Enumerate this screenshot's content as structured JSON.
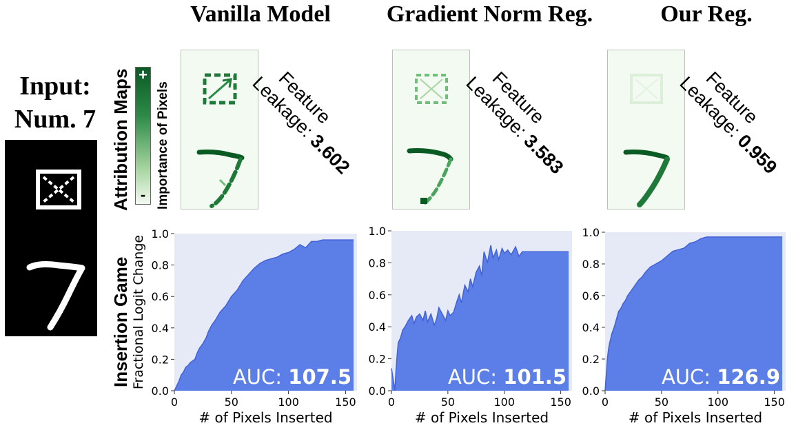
{
  "panel_titles": [
    "Vanilla Model",
    "Gradient Norm Reg.",
    "Our Reg."
  ],
  "input": {
    "title_line1": "Input:",
    "title_line2": "Num. 7"
  },
  "row_labels": {
    "attribution": "Attribution Maps",
    "insertion": "Insertion Game"
  },
  "colorbar": {
    "label": "Importance of Pixels",
    "plus": "+",
    "minus": "-"
  },
  "leakage": {
    "line1": "Feature",
    "line2": "Leakage:",
    "values": [
      "3.602",
      "3.583",
      "0.959"
    ]
  },
  "colors": {
    "fill": "#5b7fe6",
    "line": "#4361d6",
    "plot_bg": "#e5eaf6",
    "attr_dark": "#0a5a24"
  },
  "chart_data": [
    {
      "type": "area",
      "title": "",
      "xlabel": "# of Pixels Inserted",
      "ylabel": "Fractional Logit Change",
      "xlim": [
        0,
        160
      ],
      "ylim": [
        0,
        1.0
      ],
      "xticks": [
        0,
        50,
        100,
        150
      ],
      "yticks": [
        0.0,
        0.2,
        0.4,
        0.6,
        0.8,
        1.0
      ],
      "grid": false,
      "annotation": {
        "prefix": "AUC:",
        "value": "107.5"
      },
      "x": [
        0,
        2,
        4,
        6,
        8,
        10,
        12,
        14,
        16,
        18,
        20,
        22,
        25,
        28,
        30,
        33,
        36,
        40,
        45,
        50,
        55,
        60,
        65,
        70,
        75,
        80,
        85,
        90,
        95,
        100,
        105,
        110,
        115,
        120,
        125,
        130,
        135,
        140,
        145,
        150,
        157
      ],
      "y": [
        0.0,
        0.03,
        0.06,
        0.1,
        0.12,
        0.15,
        0.16,
        0.18,
        0.19,
        0.2,
        0.24,
        0.27,
        0.3,
        0.34,
        0.38,
        0.42,
        0.45,
        0.5,
        0.54,
        0.6,
        0.64,
        0.7,
        0.74,
        0.78,
        0.81,
        0.83,
        0.84,
        0.85,
        0.87,
        0.88,
        0.9,
        0.93,
        0.91,
        0.95,
        0.95,
        0.96,
        0.96,
        0.96,
        0.96,
        0.96,
        0.96
      ]
    },
    {
      "type": "area",
      "title": "",
      "xlabel": "# of Pixels Inserted",
      "ylabel": "",
      "xlim": [
        0,
        160
      ],
      "ylim": [
        0,
        1.0
      ],
      "xticks": [
        0,
        50,
        100,
        150
      ],
      "yticks": [
        0.0,
        0.2,
        0.4,
        0.6,
        0.8,
        1.0
      ],
      "grid": false,
      "annotation": {
        "prefix": "AUC:",
        "value": "101.5"
      },
      "x": [
        0,
        2,
        3,
        4,
        5,
        6,
        8,
        10,
        12,
        15,
        18,
        20,
        22,
        25,
        28,
        30,
        32,
        35,
        38,
        40,
        42,
        45,
        48,
        50,
        52,
        55,
        58,
        60,
        62,
        65,
        68,
        70,
        72,
        75,
        78,
        80,
        82,
        85,
        88,
        90,
        93,
        95,
        98,
        100,
        103,
        106,
        110,
        113,
        116,
        120,
        130,
        140,
        150,
        157
      ],
      "y": [
        0.14,
        0.05,
        0.0,
        0.12,
        0.22,
        0.3,
        0.33,
        0.38,
        0.4,
        0.44,
        0.47,
        0.42,
        0.46,
        0.48,
        0.44,
        0.5,
        0.43,
        0.48,
        0.41,
        0.45,
        0.52,
        0.48,
        0.44,
        0.5,
        0.47,
        0.49,
        0.56,
        0.6,
        0.55,
        0.66,
        0.62,
        0.7,
        0.65,
        0.74,
        0.78,
        0.72,
        0.87,
        0.8,
        0.91,
        0.83,
        0.88,
        0.82,
        0.89,
        0.86,
        0.88,
        0.85,
        0.9,
        0.84,
        0.87,
        0.87,
        0.87,
        0.87,
        0.87,
        0.87
      ]
    },
    {
      "type": "area",
      "title": "",
      "xlabel": "# of Pixels Inserted",
      "ylabel": "",
      "xlim": [
        0,
        160
      ],
      "ylim": [
        0,
        1.0
      ],
      "xticks": [
        0,
        50,
        100,
        150
      ],
      "yticks": [
        0.0,
        0.2,
        0.4,
        0.6,
        0.8,
        1.0
      ],
      "grid": false,
      "annotation": {
        "prefix": "AUC:",
        "value": "126.9"
      },
      "x": [
        0,
        1,
        2,
        3,
        4,
        5,
        6,
        8,
        10,
        12,
        14,
        16,
        18,
        20,
        22,
        25,
        28,
        30,
        33,
        36,
        40,
        45,
        50,
        55,
        60,
        65,
        70,
        75,
        80,
        85,
        90,
        100,
        110,
        120,
        130,
        140,
        150,
        157
      ],
      "y": [
        0.0,
        0.1,
        0.2,
        0.26,
        0.3,
        0.33,
        0.36,
        0.4,
        0.45,
        0.5,
        0.52,
        0.55,
        0.57,
        0.6,
        0.62,
        0.65,
        0.68,
        0.7,
        0.72,
        0.75,
        0.78,
        0.8,
        0.82,
        0.85,
        0.88,
        0.89,
        0.9,
        0.93,
        0.94,
        0.96,
        0.97,
        0.97,
        0.97,
        0.97,
        0.97,
        0.97,
        0.97,
        0.97
      ]
    }
  ]
}
